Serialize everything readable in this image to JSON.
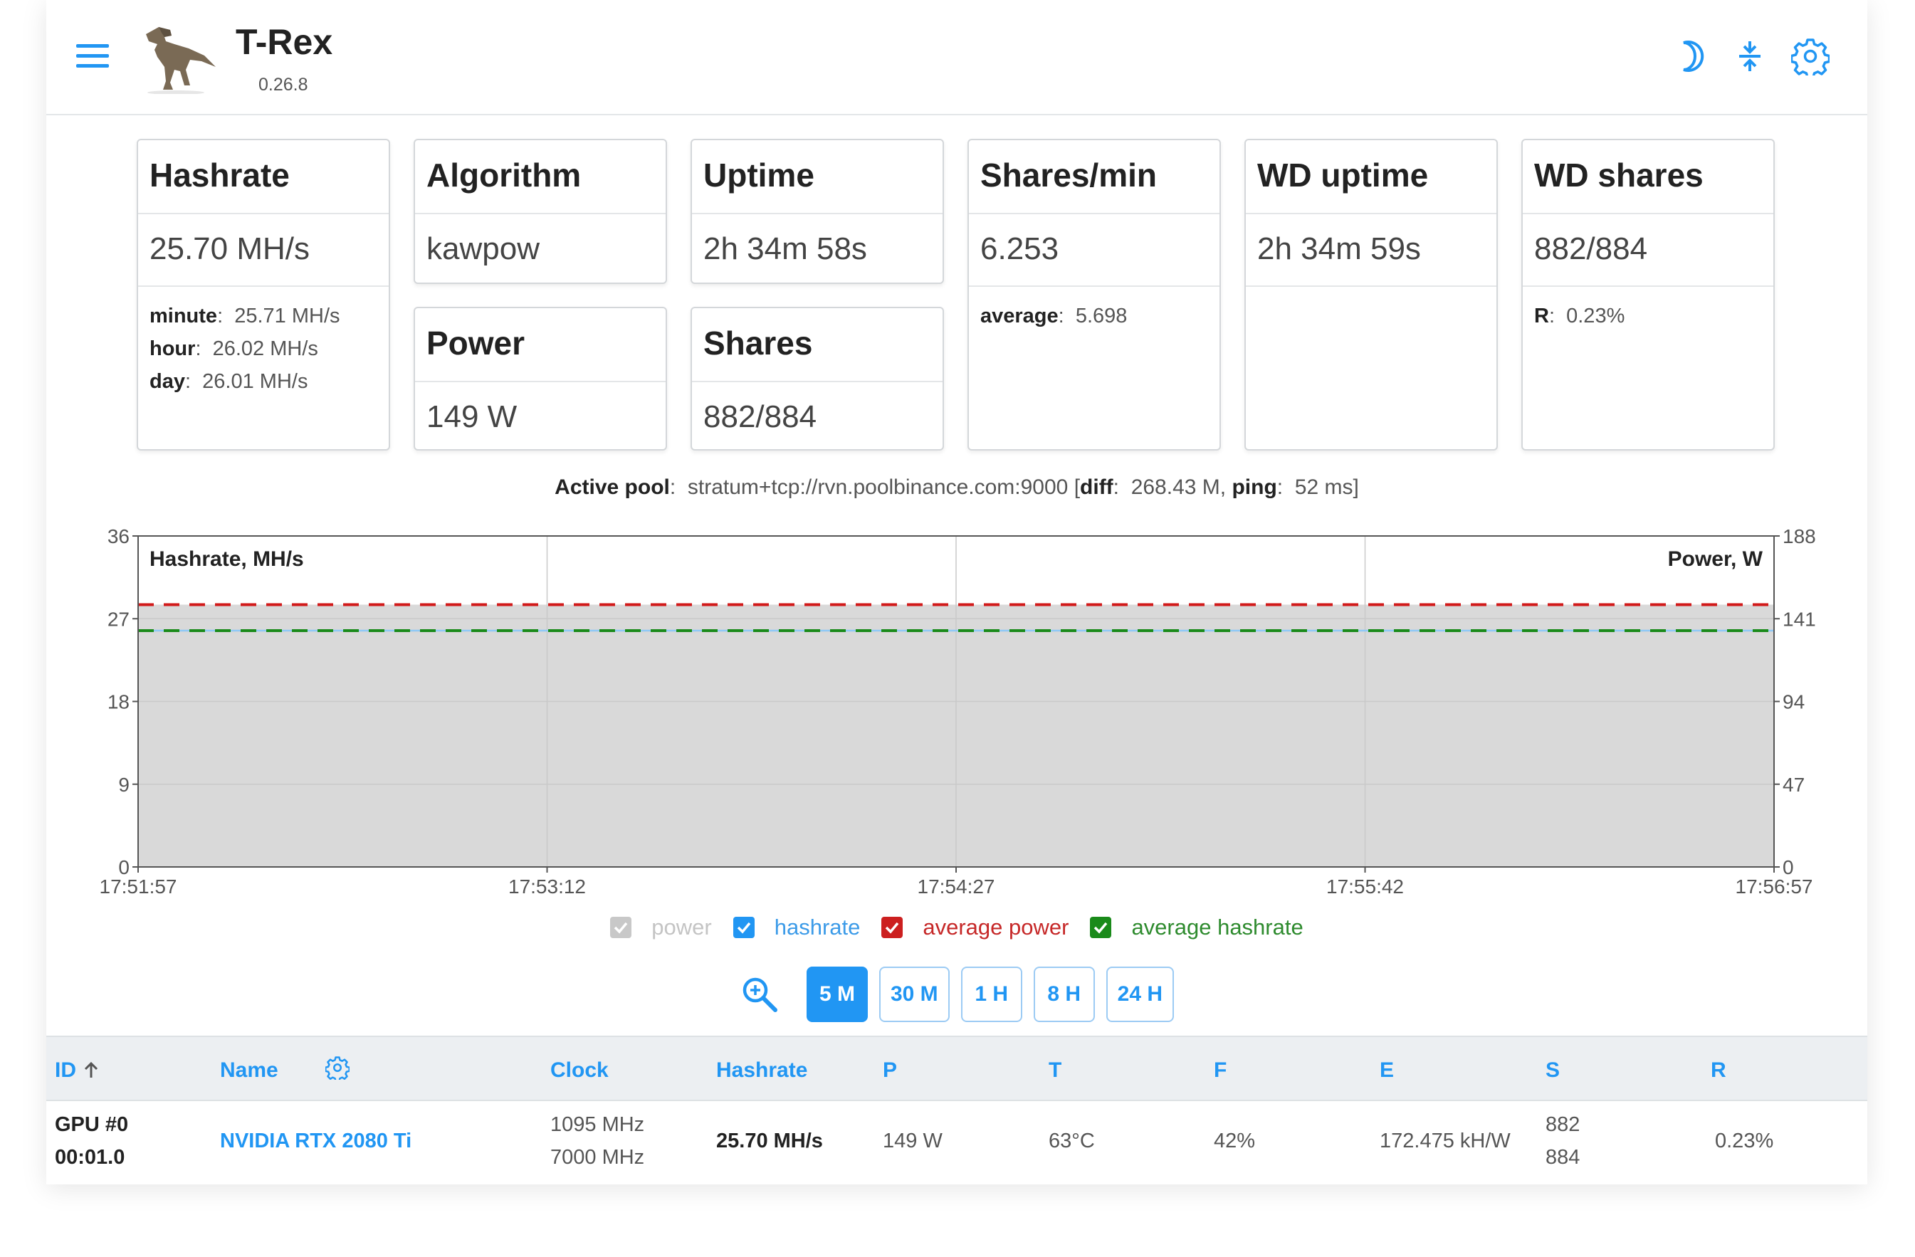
{
  "header": {
    "title": "T-Rex",
    "version": "0.26.8",
    "icons": [
      "menu-icon",
      "moon-icon",
      "compress-icon",
      "gear-icon"
    ],
    "accent": "#2196f3"
  },
  "cards": {
    "hashrate": {
      "title": "Hashrate",
      "value": "25.70 MH/s",
      "stats": [
        {
          "label": "minute",
          "value": "25.71 MH/s"
        },
        {
          "label": "hour",
          "value": "26.02 MH/s"
        },
        {
          "label": "day",
          "value": "26.01 MH/s"
        }
      ]
    },
    "algorithm": {
      "title": "Algorithm",
      "value": "kawpow"
    },
    "power": {
      "title": "Power",
      "value": "149 W"
    },
    "uptime": {
      "title": "Uptime",
      "value": "2h 34m 58s"
    },
    "shares": {
      "title": "Shares",
      "value": "882/884"
    },
    "shares_min": {
      "title": "Shares/min",
      "value": "6.253",
      "extra_label": "average",
      "extra_value": "5.698"
    },
    "wd_uptime": {
      "title": "WD uptime",
      "value": "2h 34m 59s"
    },
    "wd_shares": {
      "title": "WD shares",
      "value": "882/884",
      "extra_label": "R",
      "extra_value": "0.23%"
    }
  },
  "pool": {
    "label": "Active pool",
    "url": "stratum+tcp://rvn.poolbinance.com:9000",
    "diff_label": "diff",
    "diff": "268.43 M",
    "ping_label": "ping",
    "ping": "52 ms"
  },
  "chart_data": {
    "type": "line",
    "title": "",
    "ylabel_left": "Hashrate, MH/s",
    "ylabel_right": "Power, W",
    "x": [
      "17:51:57",
      "17:53:12",
      "17:54:27",
      "17:55:42",
      "17:56:57"
    ],
    "y_left_ticks": [
      0,
      9,
      18,
      27,
      36
    ],
    "y_right_ticks": [
      0,
      47,
      94,
      141,
      188
    ],
    "y_left_range": [
      0,
      36
    ],
    "y_right_range": [
      0,
      188
    ],
    "grid": true,
    "series": [
      {
        "name": "power",
        "axis": "right",
        "style": "area",
        "color": "#d9d9d9",
        "values": [
          149,
          149,
          149,
          149,
          149
        ]
      },
      {
        "name": "hashrate",
        "axis": "left",
        "style": "line",
        "color": "#8ec8f6",
        "values": [
          25.7,
          25.7,
          25.7,
          25.7,
          25.7
        ]
      },
      {
        "name": "average power",
        "axis": "right",
        "style": "dashed",
        "color": "#d11a1a",
        "values": [
          149,
          149,
          149,
          149,
          149
        ]
      },
      {
        "name": "average hashrate",
        "axis": "left",
        "style": "dashed",
        "color": "#1a8a1a",
        "values": [
          25.7,
          25.7,
          25.7,
          25.7,
          25.7
        ]
      }
    ]
  },
  "legend": [
    {
      "label": "power",
      "color": "#c8c8c8",
      "text_color": "#c4c4c4"
    },
    {
      "label": "hashrate",
      "color": "#2196f3",
      "text_color": "#3c9be8"
    },
    {
      "label": "average power",
      "color": "#cc1f1f",
      "text_color": "#c62828"
    },
    {
      "label": "average hashrate",
      "color": "#1a8a1a",
      "text_color": "#2e8b2e"
    }
  ],
  "ranges": [
    "5 M",
    "30 M",
    "1 H",
    "8 H",
    "24 H"
  ],
  "active_range": "5 M",
  "table": {
    "headers": {
      "id": "ID",
      "name": "Name",
      "clock": "Clock",
      "hashrate": "Hashrate",
      "p": "P",
      "t": "T",
      "f": "F",
      "e": "E",
      "s": "S",
      "r": "R"
    },
    "rows": [
      {
        "id": "GPU #0",
        "bus": "00:01.0",
        "name": "NVIDIA RTX 2080 Ti",
        "core_clock": "1095 MHz",
        "mem_clock": "7000 MHz",
        "hashrate": "25.70 MH/s",
        "p": "149 W",
        "t": "63°C",
        "f": "42%",
        "e": "172.475 kH/W",
        "s_accepted": "882",
        "s_total": "884",
        "r": "0.23%"
      }
    ]
  }
}
